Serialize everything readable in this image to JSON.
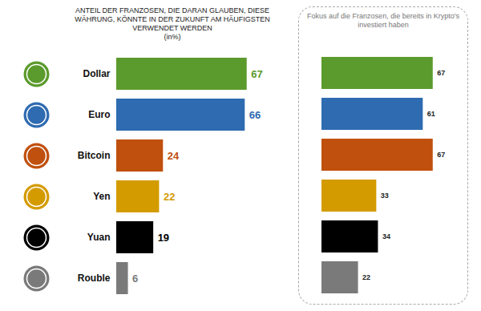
{
  "chart_data": [
    {
      "type": "bar",
      "orientation": "horizontal",
      "title": "ANTEIL DER FRANZOSEN, DIE DARAN GLAUBEN, DIESE WÄHRUNG, KÖNNTE IN DER ZUKUNFT AM HÄUFIGSTEN VERWENDET WERDEN",
      "subtitle": "(in%)",
      "categories": [
        "Dollar",
        "Euro",
        "Bitcoin",
        "Yen",
        "Yuan",
        "Rouble"
      ],
      "values": [
        67,
        66,
        24,
        22,
        19,
        6
      ],
      "colors": [
        "#5b9a2c",
        "#2e6bb0",
        "#c0500e",
        "#d49b00",
        "#000000",
        "#7a7a7a"
      ],
      "xlim": [
        0,
        70
      ],
      "data_labels": true,
      "tick_labels": "y"
    },
    {
      "type": "bar",
      "orientation": "horizontal",
      "title": "Fokus auf die Franzosen, die bereits in Krypto's investiert haben",
      "categories": [
        "Dollar",
        "Euro",
        "Bitcoin",
        "Yen",
        "Yuan",
        "Rouble"
      ],
      "values": [
        67,
        61,
        67,
        33,
        34,
        22
      ],
      "colors": [
        "#5b9a2c",
        "#2e6bb0",
        "#c0500e",
        "#d49b00",
        "#000000",
        "#7a7a7a"
      ],
      "xlim": [
        0,
        70
      ],
      "data_labels": true,
      "tick_labels": false
    }
  ]
}
